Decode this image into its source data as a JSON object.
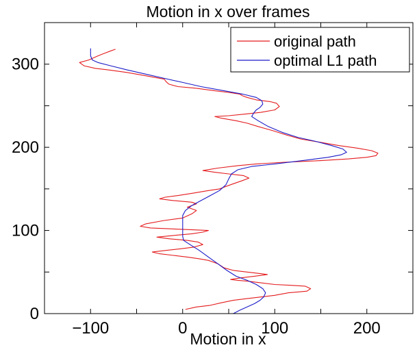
{
  "chart_data": {
    "type": "line",
    "title": "Motion in x over frames",
    "xlabel": "Motion in x",
    "ylabel": "",
    "xlim": [
      -150,
      250
    ],
    "ylim": [
      0,
      350
    ],
    "xticks": [
      -100,
      0,
      100,
      200
    ],
    "yticks": [
      0,
      100,
      200,
      300
    ],
    "minor_xticks": [
      -150,
      -50,
      50,
      150,
      250
    ],
    "minor_yticks": [
      50,
      150,
      250,
      350
    ],
    "grid": false,
    "legend_position": "top-right",
    "series": [
      {
        "name": "original path",
        "color": "#e41a1c",
        "points": [
          [
            3,
            5
          ],
          [
            15,
            8
          ],
          [
            30,
            10
          ],
          [
            42,
            13
          ],
          [
            55,
            16
          ],
          [
            70,
            18
          ],
          [
            85,
            20
          ],
          [
            100,
            22
          ],
          [
            115,
            25
          ],
          [
            125,
            26
          ],
          [
            135,
            27
          ],
          [
            139,
            30
          ],
          [
            133,
            33
          ],
          [
            118,
            34
          ],
          [
            100,
            35
          ],
          [
            85,
            37
          ],
          [
            70,
            39
          ],
          [
            60,
            40
          ],
          [
            52,
            41
          ],
          [
            63,
            43
          ],
          [
            78,
            45
          ],
          [
            92,
            47
          ],
          [
            85,
            48
          ],
          [
            70,
            50
          ],
          [
            55,
            52
          ],
          [
            45,
            55
          ],
          [
            38,
            60
          ],
          [
            28,
            64
          ],
          [
            18,
            66
          ],
          [
            5,
            68
          ],
          [
            -10,
            70
          ],
          [
            -25,
            72
          ],
          [
            -33,
            74
          ],
          [
            -18,
            76
          ],
          [
            -2,
            78
          ],
          [
            12,
            80
          ],
          [
            22,
            83
          ],
          [
            17,
            86
          ],
          [
            5,
            88
          ],
          [
            -15,
            90
          ],
          [
            -28,
            92
          ],
          [
            -10,
            94
          ],
          [
            10,
            96
          ],
          [
            22,
            98
          ],
          [
            28,
            100
          ],
          [
            8,
            101
          ],
          [
            -15,
            102
          ],
          [
            -35,
            103
          ],
          [
            -46,
            105
          ],
          [
            -40,
            108
          ],
          [
            -20,
            112
          ],
          [
            0,
            115
          ],
          [
            10,
            120
          ],
          [
            15,
            124
          ],
          [
            5,
            128
          ],
          [
            15,
            132
          ],
          [
            10,
            134
          ],
          [
            -10,
            136
          ],
          [
            -25,
            138
          ],
          [
            -19,
            140
          ],
          [
            -5,
            142
          ],
          [
            12,
            145
          ],
          [
            28,
            148
          ],
          [
            40,
            150
          ],
          [
            52,
            155
          ],
          [
            65,
            160
          ],
          [
            72,
            163
          ],
          [
            66,
            166
          ],
          [
            50,
            168
          ],
          [
            35,
            170
          ],
          [
            22,
            172
          ],
          [
            38,
            175
          ],
          [
            60,
            178
          ],
          [
            80,
            180
          ],
          [
            110,
            182
          ],
          [
            150,
            184
          ],
          [
            180,
            186
          ],
          [
            200,
            188
          ],
          [
            210,
            190
          ],
          [
            212,
            193
          ],
          [
            205,
            196
          ],
          [
            190,
            199
          ],
          [
            170,
            202
          ],
          [
            150,
            206
          ],
          [
            128,
            210
          ],
          [
            112,
            215
          ],
          [
            98,
            220
          ],
          [
            82,
            225
          ],
          [
            70,
            229
          ],
          [
            58,
            232
          ],
          [
            42,
            235
          ],
          [
            35,
            237
          ],
          [
            50,
            238
          ],
          [
            68,
            240
          ],
          [
            85,
            242
          ],
          [
            100,
            245
          ],
          [
            105,
            249
          ],
          [
            102,
            253
          ],
          [
            95,
            255
          ],
          [
            80,
            257
          ],
          [
            70,
            260
          ],
          [
            65,
            262
          ],
          [
            62,
            264
          ],
          [
            50,
            266
          ],
          [
            35,
            268
          ],
          [
            15,
            271
          ],
          [
            -5,
            273
          ],
          [
            -15,
            276
          ],
          [
            -18,
            279
          ],
          [
            -20,
            282
          ],
          [
            -40,
            286
          ],
          [
            -60,
            290
          ],
          [
            -80,
            293
          ],
          [
            -95,
            295
          ],
          [
            -107,
            298
          ],
          [
            -112,
            302
          ],
          [
            -102,
            305
          ],
          [
            -98,
            307
          ],
          [
            -92,
            310
          ],
          [
            -85,
            313
          ],
          [
            -78,
            316
          ],
          [
            -73,
            318
          ]
        ]
      },
      {
        "name": "optimal L1 path",
        "color": "#1a1ac8",
        "points": [
          [
            55,
            0
          ],
          [
            62,
            4
          ],
          [
            70,
            8
          ],
          [
            78,
            12
          ],
          [
            84,
            16
          ],
          [
            88,
            20
          ],
          [
            90,
            25
          ],
          [
            87,
            30
          ],
          [
            80,
            35
          ],
          [
            70,
            40
          ],
          [
            58,
            45
          ],
          [
            48,
            52
          ],
          [
            38,
            60
          ],
          [
            28,
            68
          ],
          [
            18,
            76
          ],
          [
            8,
            83
          ],
          [
            1,
            88
          ],
          [
            0,
            93
          ],
          [
            0,
            100
          ],
          [
            0,
            106
          ],
          [
            0,
            112
          ],
          [
            0,
            118
          ],
          [
            3,
            124
          ],
          [
            10,
            130
          ],
          [
            20,
            136
          ],
          [
            30,
            142
          ],
          [
            40,
            148
          ],
          [
            47,
            155
          ],
          [
            50,
            162
          ],
          [
            53,
            168
          ],
          [
            60,
            173
          ],
          [
            75,
            177
          ],
          [
            100,
            180
          ],
          [
            130,
            184
          ],
          [
            158,
            188
          ],
          [
            172,
            191
          ],
          [
            178,
            194
          ],
          [
            174,
            198
          ],
          [
            162,
            202
          ],
          [
            145,
            207
          ],
          [
            125,
            212
          ],
          [
            108,
            218
          ],
          [
            93,
            225
          ],
          [
            82,
            232
          ],
          [
            75,
            237
          ],
          [
            77,
            241
          ],
          [
            80,
            245
          ],
          [
            84,
            248
          ],
          [
            87,
            252
          ],
          [
            86,
            256
          ],
          [
            80,
            260
          ],
          [
            65,
            264
          ],
          [
            45,
            268
          ],
          [
            20,
            273
          ],
          [
            0,
            278
          ],
          [
            -20,
            283
          ],
          [
            -40,
            288
          ],
          [
            -60,
            293
          ],
          [
            -78,
            298
          ],
          [
            -92,
            302
          ],
          [
            -98,
            305
          ],
          [
            -100,
            310
          ],
          [
            -100,
            315
          ],
          [
            -100,
            319
          ]
        ]
      }
    ]
  }
}
